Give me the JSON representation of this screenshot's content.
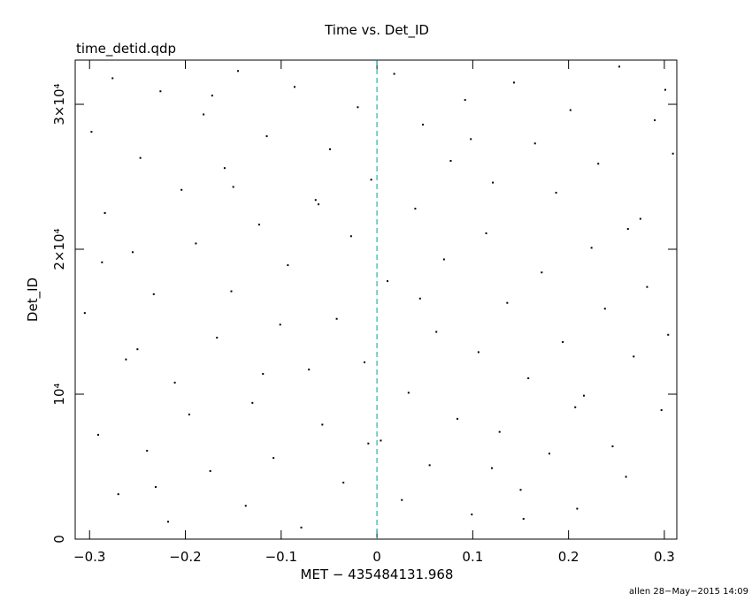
{
  "chart_data": {
    "type": "scatter",
    "title": "Time vs. Det_ID",
    "subtitle": "time_detid.qdp",
    "x_label": "MET − 435484131.968",
    "y_label": "Det_ID",
    "footer": "allen 28−May−2015 14:09",
    "xlim": [
      -0.315,
      0.313
    ],
    "ylim": [
      0,
      33050
    ],
    "xticks": [
      {
        "value": -0.3,
        "label": "−0.3"
      },
      {
        "value": -0.2,
        "label": "−0.2"
      },
      {
        "value": -0.1,
        "label": "−0.1"
      },
      0,
      0.1,
      0.2,
      0.3
    ],
    "yticks": [
      0,
      {
        "value": 10000,
        "label": "10⁴"
      },
      {
        "value": 20000,
        "label": "2×10⁴"
      },
      {
        "value": 30000,
        "label": "3×10⁴"
      }
    ],
    "reference_line": {
      "x": 0,
      "color": "#00a0a0"
    },
    "x": [
      -0.305,
      -0.298,
      -0.291,
      -0.284,
      -0.276,
      -0.27,
      -0.262,
      -0.255,
      -0.247,
      -0.24,
      -0.233,
      -0.226,
      -0.218,
      -0.211,
      -0.204,
      -0.196,
      -0.189,
      -0.181,
      -0.174,
      -0.167,
      -0.159,
      -0.152,
      -0.145,
      -0.137,
      -0.13,
      -0.123,
      -0.115,
      -0.108,
      -0.101,
      -0.093,
      -0.086,
      -0.079,
      -0.071,
      -0.064,
      -0.057,
      -0.049,
      -0.042,
      -0.035,
      -0.027,
      -0.02,
      -0.013,
      -0.006,
      0.004,
      0.011,
      0.018,
      0.026,
      0.033,
      0.04,
      0.048,
      0.055,
      0.062,
      0.07,
      0.077,
      0.084,
      0.092,
      0.099,
      0.106,
      0.114,
      0.121,
      0.128,
      0.136,
      0.143,
      0.15,
      0.158,
      0.165,
      0.172,
      0.18,
      0.187,
      0.194,
      0.202,
      0.209,
      0.216,
      0.224,
      0.231,
      0.238,
      0.246,
      0.253,
      0.26,
      0.268,
      0.275,
      0.282,
      0.29,
      0.297,
      0.304,
      0.309,
      -0.287,
      -0.231,
      -0.172,
      -0.119,
      -0.061,
      -0.009,
      0.045,
      0.098,
      0.153,
      0.207,
      0.262,
      0.301,
      -0.25,
      -0.15,
      0.12
    ],
    "series": [
      {
        "color": "#000000",
        "values": [
          15600,
          28100,
          7200,
          22500,
          31800,
          3100,
          12400,
          19800,
          26300,
          6100,
          16900,
          30900,
          1200,
          10800,
          24100,
          8600,
          20400,
          29300,
          4700,
          13900,
          25600,
          17100,
          32300,
          2300,
          9400,
          21700,
          27800,
          5600,
          14800,
          18900,
          31200,
          800,
          11700,
          23400,
          7900,
          26900,
          15200,
          3900,
          20900,
          29800,
          12200,
          24800,
          6800,
          17800,
          32100,
          2700,
          10100,
          22800,
          28600,
          5100,
          14300,
          19300,
          26100,
          8300,
          30300,
          1700,
          12900,
          21100,
          24600,
          7400,
          16300,
          31500,
          3400,
          11100,
          27300,
          18400,
          5900,
          23900,
          13600,
          29600,
          2100,
          9900,
          20100,
          25900,
          15900,
          6400,
          32600,
          4300,
          12600,
          22100,
          17400,
          28900,
          8900,
          14100,
          26600,
          19100,
          3600,
          30600,
          11400,
          23100,
          6600,
          16600,
          27600,
          1400,
          9100,
          21400,
          31000,
          13100,
          24300,
          4900
        ]
      }
    ],
    "grid": false
  }
}
